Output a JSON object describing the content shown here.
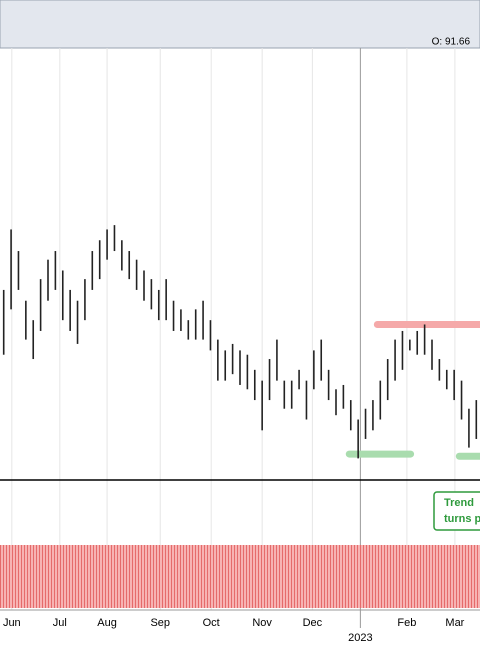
{
  "header": "O: 91.66",
  "chart_data": {
    "type": "ohlc",
    "high": [
      88.8,
      91.6,
      90.6,
      88.3,
      87.4,
      89.3,
      90.2,
      90.6,
      89.7,
      88.8,
      88.3,
      89.3,
      90.6,
      91.1,
      91.6,
      91.8,
      91.1,
      90.6,
      90.2,
      89.7,
      89.3,
      88.8,
      89.3,
      88.3,
      87.9,
      87.4,
      87.9,
      88.3,
      87.4,
      86.5,
      86.0,
      86.3,
      86.0,
      85.8,
      85.1,
      84.6,
      85.6,
      86.5,
      84.6,
      84.6,
      85.1,
      84.6,
      86.0,
      86.5,
      85.1,
      84.2,
      84.4,
      83.7,
      82.8,
      83.3,
      83.7,
      84.6,
      85.6,
      86.5,
      86.9,
      86.5,
      86.9,
      87.2,
      86.5,
      85.6,
      85.1,
      85.1,
      84.6,
      83.3,
      83.7
    ],
    "low": [
      85.8,
      87.9,
      88.8,
      86.5,
      85.6,
      86.9,
      88.3,
      88.8,
      87.4,
      86.9,
      86.3,
      87.4,
      88.8,
      89.3,
      90.2,
      90.6,
      89.7,
      89.3,
      88.8,
      88.3,
      87.9,
      87.4,
      87.4,
      86.9,
      86.9,
      86.5,
      86.5,
      86.5,
      86.0,
      84.6,
      84.6,
      84.9,
      84.4,
      84.2,
      83.7,
      82.3,
      83.7,
      84.6,
      83.3,
      83.3,
      84.2,
      82.8,
      84.2,
      84.6,
      83.7,
      83.0,
      83.3,
      82.3,
      81.0,
      81.9,
      82.3,
      82.8,
      83.7,
      84.6,
      85.1,
      86.0,
      85.8,
      85.8,
      85.1,
      84.6,
      84.2,
      83.7,
      82.8,
      81.5,
      81.9
    ],
    "xlim": [
      0,
      65
    ],
    "ylim": [
      80,
      100
    ],
    "xticks": [
      {
        "value": 1.6,
        "label": "Jun"
      },
      {
        "value": 8.1,
        "label": "Jul"
      },
      {
        "value": 14.5,
        "label": "Aug"
      },
      {
        "value": 21.7,
        "label": "Sep"
      },
      {
        "value": 28.6,
        "label": "Oct"
      },
      {
        "value": 35.5,
        "label": "Nov"
      },
      {
        "value": 42.3,
        "label": "Dec"
      },
      {
        "value": 55.1,
        "label": "Feb"
      },
      {
        "value": 61.6,
        "label": "Mar"
      }
    ],
    "year_ticks": [
      {
        "value": 48.8,
        "label": "2023"
      }
    ],
    "levels": [
      {
        "value": 87.2,
        "from": 51.1,
        "to": 65,
        "color": "#f5a9a9"
      },
      {
        "value": 81.2,
        "from": 47.3,
        "to": 55.6,
        "color": "#a9dcae"
      },
      {
        "value": 81.1,
        "from": 62.2,
        "to": 65,
        "color": "#a9dcae"
      }
    ],
    "annotation": [
      "Trend",
      "turns p"
    ],
    "color": "#222222"
  }
}
